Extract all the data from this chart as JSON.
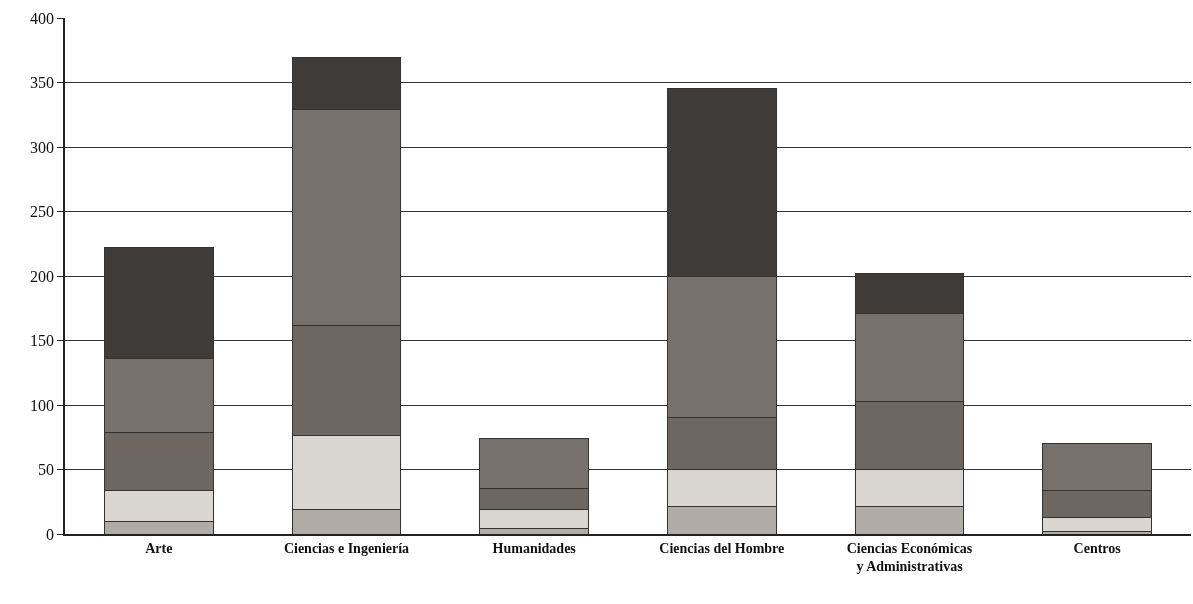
{
  "chart_data": {
    "type": "bar",
    "stacked": true,
    "categories": [
      "Arte",
      "Ciencias e Ingeniería",
      "Humanidades",
      "Ciencias del Hombre",
      "Ciencias Económicas y Administrativas",
      "Centros"
    ],
    "series": [
      {
        "color": "#b0aba5",
        "values": [
          10,
          19,
          4,
          21,
          21,
          2
        ]
      },
      {
        "color": "#d9d6d1",
        "values": [
          24,
          57,
          15,
          29,
          29,
          11
        ]
      },
      {
        "color": "#6e6660",
        "values": [
          45,
          86,
          16,
          40,
          53,
          21
        ]
      },
      {
        "color": "#77716d",
        "values": [
          57,
          167,
          39,
          110,
          68,
          36
        ]
      },
      {
        "color": "#3f3b38",
        "values": [
          86,
          40,
          0,
          145,
          31,
          0
        ]
      }
    ],
    "ylim": [
      0,
      400
    ],
    "yticks": [
      0,
      50,
      100,
      150,
      200,
      250,
      300,
      350,
      400
    ],
    "grid": "y"
  }
}
